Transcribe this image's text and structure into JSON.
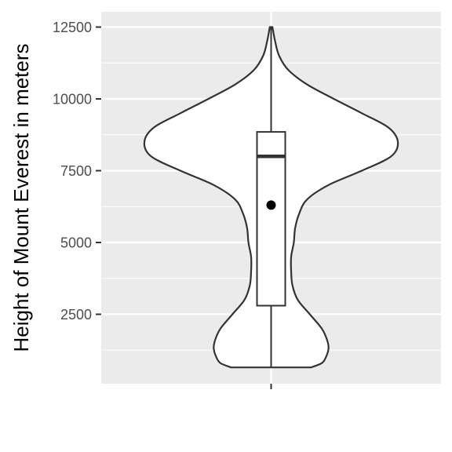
{
  "chart_data": {
    "type": "violin",
    "ylabel": "Height of Mount Everest in meters",
    "xlabel": "",
    "title": "",
    "ylim": [
      0,
      13000
    ],
    "yticks": [
      2500,
      5000,
      7500,
      10000,
      12500
    ],
    "grid": true,
    "colors": {
      "panel": "#ebebeb",
      "grid": "#ffffff",
      "outline": "#333333",
      "violin_fill": "#ffffff",
      "mean_point": "#000000"
    },
    "violin": {
      "min": 650,
      "max": 12500,
      "profile": [
        [
          650,
          0.3
        ],
        [
          800,
          0.38
        ],
        [
          1000,
          0.41
        ],
        [
          1300,
          0.43
        ],
        [
          1600,
          0.42
        ],
        [
          2000,
          0.38
        ],
        [
          2500,
          0.29
        ],
        [
          3000,
          0.2
        ],
        [
          3500,
          0.16
        ],
        [
          4000,
          0.15
        ],
        [
          4500,
          0.15
        ],
        [
          5000,
          0.17
        ],
        [
          5500,
          0.18
        ],
        [
          6000,
          0.21
        ],
        [
          6500,
          0.27
        ],
        [
          7000,
          0.43
        ],
        [
          7500,
          0.68
        ],
        [
          8000,
          0.9
        ],
        [
          8500,
          0.95
        ],
        [
          9000,
          0.88
        ],
        [
          9500,
          0.68
        ],
        [
          10000,
          0.47
        ],
        [
          10500,
          0.27
        ],
        [
          11000,
          0.13
        ],
        [
          11500,
          0.06
        ],
        [
          12000,
          0.03
        ],
        [
          12500,
          0.01
        ]
      ]
    },
    "boxplot": {
      "whisker_low": 650,
      "q1": 2800,
      "median": 8000,
      "q3": 8850,
      "whisker_high": 12500,
      "mean": 6300
    }
  }
}
